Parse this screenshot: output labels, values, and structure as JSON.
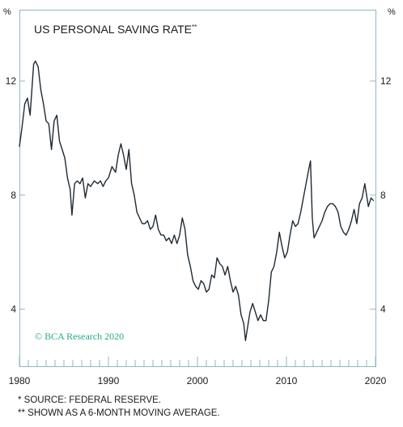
{
  "chart_data": {
    "type": "line",
    "title": "US PERSONAL SAVING RATE",
    "title_mark": "**",
    "y_unit_left": "%",
    "y_unit_right": "%",
    "xlim": [
      1980,
      2020
    ],
    "ylim": [
      2,
      14.5
    ],
    "y_ticks": [
      4,
      8,
      12
    ],
    "x_ticks": [
      1980,
      1990,
      2000,
      2010,
      2020
    ],
    "grid": false,
    "line_color": "#1f2a33",
    "frame_color": "#8fb8c0",
    "watermark": "© BCA Research 2020",
    "watermark_color": "#26a889",
    "series": [
      {
        "points": [
          [
            1980.0,
            9.7
          ],
          [
            1980.3,
            10.4
          ],
          [
            1980.6,
            11.2
          ],
          [
            1980.9,
            11.4
          ],
          [
            1981.2,
            10.8
          ],
          [
            1981.4,
            11.7
          ],
          [
            1981.6,
            12.6
          ],
          [
            1981.8,
            12.7
          ],
          [
            1982.1,
            12.5
          ],
          [
            1982.4,
            11.7
          ],
          [
            1982.7,
            11.2
          ],
          [
            1983.0,
            10.6
          ],
          [
            1983.3,
            10.5
          ],
          [
            1983.6,
            9.6
          ],
          [
            1983.9,
            10.6
          ],
          [
            1984.2,
            10.8
          ],
          [
            1984.5,
            9.9
          ],
          [
            1984.8,
            9.6
          ],
          [
            1985.1,
            9.3
          ],
          [
            1985.4,
            8.6
          ],
          [
            1985.7,
            8.2
          ],
          [
            1985.9,
            7.3
          ],
          [
            1986.2,
            8.4
          ],
          [
            1986.5,
            8.5
          ],
          [
            1986.8,
            8.4
          ],
          [
            1987.1,
            8.6
          ],
          [
            1987.4,
            7.9
          ],
          [
            1987.7,
            8.4
          ],
          [
            1988.0,
            8.3
          ],
          [
            1988.4,
            8.5
          ],
          [
            1988.8,
            8.4
          ],
          [
            1989.1,
            8.5
          ],
          [
            1989.4,
            8.3
          ],
          [
            1989.7,
            8.5
          ],
          [
            1990.0,
            8.6
          ],
          [
            1990.4,
            9.0
          ],
          [
            1990.8,
            8.8
          ],
          [
            1991.1,
            9.4
          ],
          [
            1991.4,
            9.8
          ],
          [
            1991.7,
            9.4
          ],
          [
            1992.0,
            8.9
          ],
          [
            1992.3,
            9.6
          ],
          [
            1992.6,
            8.4
          ],
          [
            1992.9,
            8.0
          ],
          [
            1993.2,
            7.4
          ],
          [
            1993.5,
            7.2
          ],
          [
            1993.8,
            7.0
          ],
          [
            1994.1,
            7.0
          ],
          [
            1994.4,
            7.1
          ],
          [
            1994.7,
            6.8
          ],
          [
            1995.0,
            6.9
          ],
          [
            1995.3,
            7.3
          ],
          [
            1995.6,
            6.8
          ],
          [
            1995.9,
            6.6
          ],
          [
            1996.2,
            6.6
          ],
          [
            1996.5,
            6.4
          ],
          [
            1996.8,
            6.5
          ],
          [
            1997.1,
            6.3
          ],
          [
            1997.4,
            6.6
          ],
          [
            1997.7,
            6.3
          ],
          [
            1998.0,
            6.6
          ],
          [
            1998.3,
            7.2
          ],
          [
            1998.6,
            6.8
          ],
          [
            1998.9,
            5.9
          ],
          [
            1999.2,
            5.5
          ],
          [
            1999.5,
            5.0
          ],
          [
            1999.8,
            4.8
          ],
          [
            2000.1,
            4.7
          ],
          [
            2000.4,
            5.0
          ],
          [
            2000.7,
            4.9
          ],
          [
            2001.0,
            4.6
          ],
          [
            2001.3,
            4.7
          ],
          [
            2001.6,
            5.2
          ],
          [
            2001.9,
            5.1
          ],
          [
            2002.2,
            5.8
          ],
          [
            2002.5,
            5.6
          ],
          [
            2002.8,
            5.5
          ],
          [
            2003.1,
            5.2
          ],
          [
            2003.4,
            5.5
          ],
          [
            2003.7,
            5.0
          ],
          [
            2004.0,
            4.6
          ],
          [
            2004.3,
            4.8
          ],
          [
            2004.6,
            4.5
          ],
          [
            2004.9,
            3.8
          ],
          [
            2005.2,
            3.5
          ],
          [
            2005.4,
            2.9
          ],
          [
            2005.6,
            3.3
          ],
          [
            2005.9,
            3.9
          ],
          [
            2006.2,
            4.2
          ],
          [
            2006.5,
            3.9
          ],
          [
            2006.8,
            3.6
          ],
          [
            2007.1,
            3.8
          ],
          [
            2007.4,
            3.6
          ],
          [
            2007.7,
            3.6
          ],
          [
            2008.0,
            4.3
          ],
          [
            2008.3,
            5.3
          ],
          [
            2008.6,
            5.5
          ],
          [
            2008.9,
            6.0
          ],
          [
            2009.2,
            6.7
          ],
          [
            2009.5,
            6.2
          ],
          [
            2009.8,
            5.8
          ],
          [
            2010.1,
            6.0
          ],
          [
            2010.4,
            6.6
          ],
          [
            2010.7,
            7.1
          ],
          [
            2011.0,
            6.9
          ],
          [
            2011.3,
            7.0
          ],
          [
            2011.6,
            7.4
          ],
          [
            2011.9,
            7.9
          ],
          [
            2012.2,
            8.4
          ],
          [
            2012.5,
            8.9
          ],
          [
            2012.7,
            9.2
          ],
          [
            2012.9,
            7.2
          ],
          [
            2013.1,
            6.5
          ],
          [
            2013.4,
            6.7
          ],
          [
            2013.7,
            6.9
          ],
          [
            2014.0,
            7.1
          ],
          [
            2014.3,
            7.4
          ],
          [
            2014.6,
            7.6
          ],
          [
            2014.9,
            7.7
          ],
          [
            2015.2,
            7.7
          ],
          [
            2015.5,
            7.6
          ],
          [
            2015.8,
            7.4
          ],
          [
            2016.1,
            6.9
          ],
          [
            2016.4,
            6.7
          ],
          [
            2016.7,
            6.6
          ],
          [
            2017.0,
            6.8
          ],
          [
            2017.3,
            7.1
          ],
          [
            2017.6,
            7.5
          ],
          [
            2017.9,
            7.0
          ],
          [
            2018.2,
            7.7
          ],
          [
            2018.5,
            7.9
          ],
          [
            2018.8,
            8.4
          ],
          [
            2019.0,
            8.0
          ],
          [
            2019.2,
            7.6
          ],
          [
            2019.5,
            7.9
          ],
          [
            2019.8,
            7.8
          ]
        ]
      }
    ]
  },
  "notes": {
    "line1": "*  SOURCE: FEDERAL RESERVE.",
    "line2": "** SHOWN AS A 6-MONTH MOVING AVERAGE."
  }
}
